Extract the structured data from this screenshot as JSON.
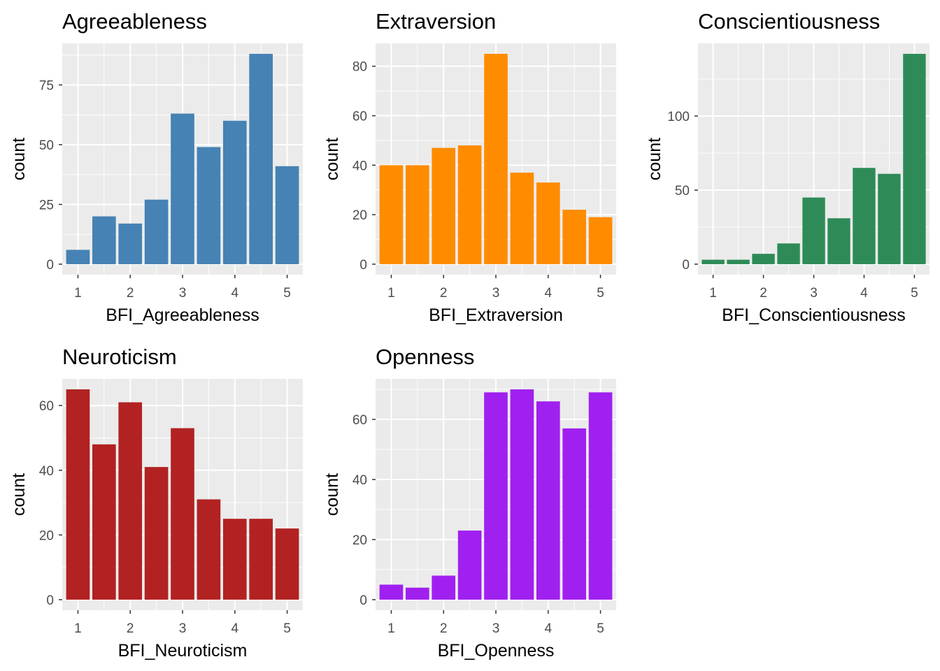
{
  "chart_data": [
    {
      "type": "bar",
      "title": "Agreeableness",
      "xlabel": "BFI_Agreeableness",
      "ylabel": "count",
      "color": "#4682B4",
      "x": [
        1.0,
        1.5,
        2.0,
        2.5,
        3.0,
        3.5,
        4.0,
        4.5,
        5.0
      ],
      "values": [
        6,
        20,
        17,
        27,
        63,
        49,
        60,
        88,
        41
      ],
      "xlim": [
        0.7,
        5.3
      ],
      "ylim": [
        -4.4,
        92.4
      ],
      "xticks": [
        1,
        2,
        3,
        4,
        5
      ],
      "yticks": [
        0,
        25,
        50,
        75
      ],
      "grid": true
    },
    {
      "type": "bar",
      "title": "Extraversion",
      "xlabel": "BFI_Extraversion",
      "ylabel": "count",
      "color": "#FF8C00",
      "x": [
        1.0,
        1.5,
        2.0,
        2.5,
        3.0,
        3.5,
        4.0,
        4.5,
        5.0
      ],
      "values": [
        40,
        40,
        47,
        48,
        85,
        37,
        33,
        22,
        19
      ],
      "xlim": [
        0.7,
        5.3
      ],
      "ylim": [
        -4.25,
        89.25
      ],
      "xticks": [
        1,
        2,
        3,
        4,
        5
      ],
      "yticks": [
        0,
        20,
        40,
        60,
        80
      ],
      "grid": true
    },
    {
      "type": "bar",
      "title": "Conscientiousness",
      "xlabel": "BFI_Conscientiousness",
      "ylabel": "count",
      "color": "#2E8B57",
      "x": [
        1.0,
        1.5,
        2.0,
        2.5,
        3.0,
        3.5,
        4.0,
        4.5,
        5.0
      ],
      "values": [
        3,
        3,
        7,
        14,
        45,
        31,
        65,
        61,
        142
      ],
      "xlim": [
        0.7,
        5.3
      ],
      "ylim": [
        -7.1,
        149.1
      ],
      "xticks": [
        1,
        2,
        3,
        4,
        5
      ],
      "yticks": [
        0,
        50,
        100
      ],
      "grid": true
    },
    {
      "type": "bar",
      "title": "Neuroticism",
      "xlabel": "BFI_Neuroticism",
      "ylabel": "count",
      "color": "#B22222",
      "x": [
        1.0,
        1.5,
        2.0,
        2.5,
        3.0,
        3.5,
        4.0,
        4.5,
        5.0
      ],
      "values": [
        65,
        48,
        61,
        41,
        53,
        31,
        25,
        25,
        22
      ],
      "xlim": [
        0.7,
        5.3
      ],
      "ylim": [
        -3.25,
        68.25
      ],
      "xticks": [
        1,
        2,
        3,
        4,
        5
      ],
      "yticks": [
        0,
        20,
        40,
        60
      ],
      "grid": true
    },
    {
      "type": "bar",
      "title": "Openness",
      "xlabel": "BFI_Openness",
      "ylabel": "count",
      "color": "#A020F0",
      "x": [
        1.0,
        1.5,
        2.0,
        2.5,
        3.0,
        3.5,
        4.0,
        4.5,
        5.0
      ],
      "values": [
        5,
        4,
        8,
        23,
        69,
        70,
        66,
        57,
        69
      ],
      "xlim": [
        0.7,
        5.3
      ],
      "ylim": [
        -3.5,
        73.5
      ],
      "xticks": [
        1,
        2,
        3,
        4,
        5
      ],
      "yticks": [
        0,
        20,
        40,
        60
      ],
      "grid": true
    }
  ]
}
